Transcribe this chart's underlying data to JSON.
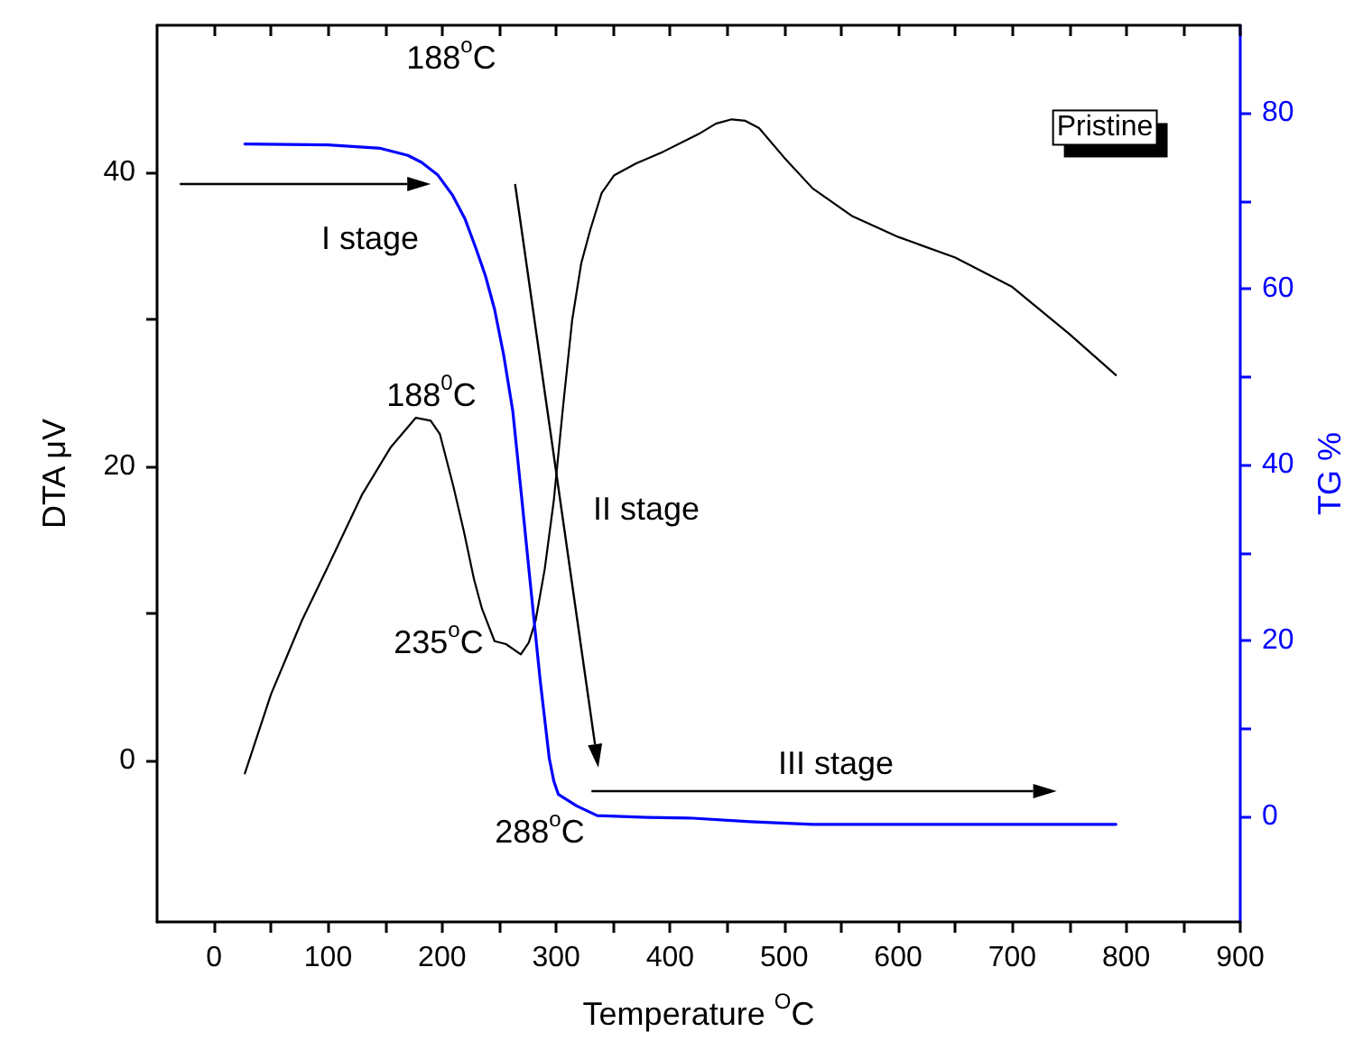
{
  "chart_data": {
    "type": "line",
    "xlabel": "Temperature $^{O}$C",
    "ylabel": "DTA μV",
    "y2label": "TG %",
    "xlim": [
      -50,
      900
    ],
    "xticks": [
      0,
      100,
      200,
      300,
      400,
      500,
      600,
      700,
      800,
      900
    ],
    "ylim": [
      -11,
      50
    ],
    "yticks": [
      0,
      20,
      40
    ],
    "y2lim": [
      -12,
      90
    ],
    "y2ticks": [
      0,
      20,
      40,
      60,
      80
    ],
    "series": [
      {
        "color": "#000000",
        "x": [
          27,
          50,
          77,
          100,
          130,
          155,
          177,
          190,
          198,
          210,
          219,
          228,
          235,
          246,
          256,
          269,
          276,
          282,
          290,
          298,
          306,
          314,
          322,
          330,
          340,
          351,
          370,
          394,
          425,
          440,
          454,
          466,
          478,
          500,
          525,
          560,
          600,
          650,
          700,
          750,
          791
        ],
        "values": [
          -0.9,
          4.5,
          9.5,
          13.2,
          18.1,
          21.3,
          23.3,
          23.1,
          22.2,
          18.6,
          15.6,
          12.3,
          10.3,
          8.1,
          7.9,
          7.2,
          8.0,
          9.5,
          13.0,
          17.7,
          24.0,
          29.9,
          33.8,
          36.1,
          38.6,
          39.8,
          40.6,
          41.4,
          42.6,
          43.3,
          43.6,
          43.5,
          43.0,
          41.0,
          38.9,
          37.0,
          35.6,
          34.2,
          32.2,
          29.0,
          26.2
        ]
      },
      {
        "color": "#0000ff",
        "axis": "y2",
        "x": [
          27,
          100,
          146,
          170,
          182,
          196,
          209,
          220,
          230,
          238,
          246,
          254,
          262,
          270,
          278,
          286,
          294,
          298,
          302,
          318,
          336,
          380,
          420,
          470,
          525,
          600,
          700,
          791
        ],
        "values": [
          76.5,
          76.4,
          76.0,
          75.2,
          74.4,
          73.0,
          70.7,
          68.0,
          64.5,
          61.5,
          57.7,
          52.5,
          46.1,
          36.0,
          25.7,
          15.5,
          6.6,
          4.0,
          2.5,
          1.2,
          0.1,
          -0.1,
          -0.2,
          -0.6,
          -0.9,
          -0.9,
          -0.9,
          -0.9
        ]
      }
    ],
    "annotations": [
      "188$^{o}$C",
      "I stage",
      "188$^{0}$C",
      "235$^{o}$C",
      "II stage",
      "III stage",
      "288$^{o}$C",
      "Pristine"
    ]
  }
}
